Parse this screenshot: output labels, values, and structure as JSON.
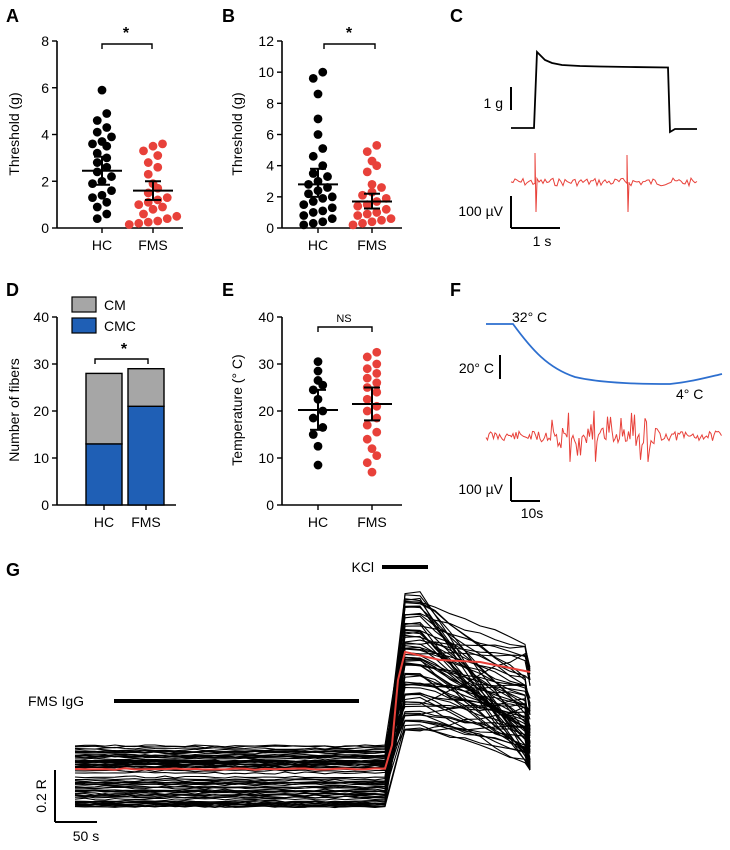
{
  "colors": {
    "black": "#000000",
    "red": "#e8413a",
    "blue": "#1f5fb5",
    "gray": "#a6a6a6",
    "trace_blue": "#2d6fcf"
  },
  "panels": {
    "A": {
      "letter": "A",
      "ylabel": "Threshold (g)",
      "sig": "*"
    },
    "B": {
      "letter": "B",
      "ylabel": "Threshold (g)",
      "sig": "*"
    },
    "C": {
      "letter": "C",
      "force_scale": "1 g",
      "volt_scale": "100 µV",
      "time_scale": "1 s"
    },
    "D": {
      "letter": "D",
      "ylabel": "Number of fibers",
      "sig": "*",
      "legend": [
        "CM",
        "CMC"
      ]
    },
    "E": {
      "letter": "E",
      "ylabel": "Temperature (° C)",
      "sig": "NS"
    },
    "F": {
      "letter": "F",
      "start_temp": "32° C",
      "end_temp": "4° C",
      "temp_scale": "20° C",
      "volt_scale": "100 µV",
      "time_scale": "10s"
    },
    "G": {
      "letter": "G",
      "kcl_label": "KCl",
      "igg_label": "FMS IgG",
      "r_scale": "0.2 R",
      "time_scale": "50 s"
    }
  },
  "chart_data": [
    {
      "panel": "A",
      "type": "scatter",
      "categories": [
        "HC",
        "FMS"
      ],
      "ylabel": "Threshold (g)",
      "ylim": [
        0,
        8
      ],
      "yticks": [
        0,
        2,
        4,
        6,
        8
      ],
      "series": [
        {
          "name": "HC",
          "color": "black",
          "values": [
            5.9,
            4.9,
            4.6,
            4.3,
            4.1,
            3.9,
            3.7,
            3.6,
            3.5,
            3.2,
            3.0,
            2.8,
            2.6,
            2.4,
            2.2,
            2.0,
            1.9,
            1.6,
            1.4,
            1.3,
            1.1,
            0.9,
            0.6,
            0.4
          ],
          "mean": 2.45,
          "ci": [
            1.85,
            3.05
          ]
        },
        {
          "name": "FMS",
          "color": "red",
          "values": [
            3.6,
            3.5,
            3.3,
            3.1,
            2.8,
            2.6,
            2.3,
            1.9,
            1.7,
            1.5,
            1.3,
            1.2,
            1.1,
            1.0,
            0.9,
            0.8,
            0.6,
            0.5,
            0.4,
            0.3,
            0.25,
            0.2,
            0.15
          ],
          "mean": 1.6,
          "ci": [
            1.2,
            2.0
          ]
        }
      ],
      "annotation": "*"
    },
    {
      "panel": "B",
      "type": "scatter",
      "categories": [
        "HC",
        "FMS"
      ],
      "ylabel": "Threshold (g)",
      "ylim": [
        0,
        12
      ],
      "yticks": [
        0,
        2,
        4,
        6,
        8,
        10,
        12
      ],
      "series": [
        {
          "name": "HC",
          "color": "black",
          "values": [
            10.0,
            9.6,
            8.6,
            7.0,
            6.0,
            5.1,
            4.6,
            4.0,
            3.5,
            3.3,
            3.0,
            2.8,
            2.6,
            2.4,
            2.2,
            2.0,
            1.9,
            1.7,
            1.5,
            1.3,
            1.1,
            1.0,
            0.8,
            0.6,
            0.4,
            0.3,
            0.2
          ],
          "mean": 2.8,
          "ci": [
            2.0,
            3.8
          ]
        },
        {
          "name": "FMS",
          "color": "red",
          "values": [
            5.3,
            4.9,
            4.3,
            4.0,
            3.6,
            2.8,
            2.6,
            2.3,
            2.1,
            1.9,
            1.7,
            1.5,
            1.4,
            1.2,
            1.0,
            0.9,
            0.8,
            0.6,
            0.5,
            0.4,
            0.3,
            0.2
          ],
          "mean": 1.7,
          "ci": [
            1.25,
            2.2
          ]
        }
      ],
      "annotation": "*"
    },
    {
      "panel": "D",
      "type": "bar",
      "stacked": true,
      "categories": [
        "HC",
        "FMS"
      ],
      "ylabel": "Number of fibers",
      "ylim": [
        0,
        40
      ],
      "yticks": [
        0,
        10,
        20,
        30,
        40
      ],
      "series": [
        {
          "name": "CMC",
          "color": "blue",
          "values": [
            13,
            21
          ]
        },
        {
          "name": "CM",
          "color": "gray",
          "values": [
            15,
            8
          ]
        }
      ],
      "annotation": "*"
    },
    {
      "panel": "E",
      "type": "scatter",
      "categories": [
        "HC",
        "FMS"
      ],
      "ylabel": "Temperature (° C)",
      "ylim": [
        0,
        40
      ],
      "yticks": [
        0,
        10,
        20,
        30,
        40
      ],
      "series": [
        {
          "name": "HC",
          "color": "black",
          "values": [
            30.5,
            28.5,
            26.5,
            25.5,
            24.5,
            22.5,
            20.0,
            18.5,
            16.5,
            15.0,
            12.5,
            8.5
          ],
          "mean": 20.2,
          "ci": [
            16.0,
            24.5
          ]
        },
        {
          "name": "FMS",
          "color": "red",
          "values": [
            32.5,
            31.5,
            30.0,
            29.0,
            28.0,
            27.0,
            26.0,
            25.0,
            24.0,
            22.5,
            21.0,
            20.0,
            18.5,
            17.0,
            15.5,
            14.0,
            12.0,
            10.5,
            9.0,
            7.0
          ],
          "mean": 21.5,
          "ci": [
            18.0,
            25.0
          ]
        }
      ],
      "annotation": "NS"
    }
  ]
}
